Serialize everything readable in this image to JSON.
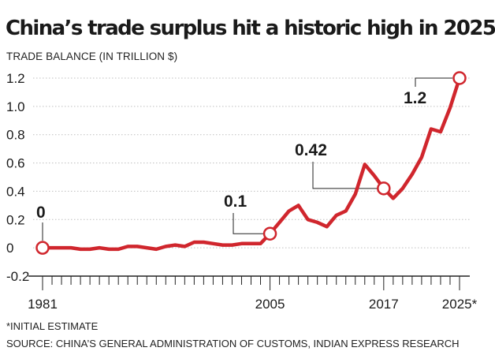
{
  "header": {
    "title": "China’s trade surplus hit a historic high in 2025",
    "subtitle": "TRADE BALANCE (IN TRILLION $)"
  },
  "footer": {
    "note": "*INITIAL ESTIMATE",
    "source": "SOURCE: CHINA’S GENERAL ADMINISTRATION OF CUSTOMS, INDIAN EXPRESS RESEARCH"
  },
  "colors": {
    "line": "#d0262d",
    "marker_fill": "#ffffff",
    "text": "#1a1a1a",
    "grid": "#bfbfbf",
    "axis": "#222222"
  },
  "chart_data": {
    "type": "line",
    "title": "China’s trade surplus hit a historic high in 2025",
    "ylabel": "TRADE BALANCE (IN TRILLION $)",
    "xlabel": "",
    "ylim": [
      -0.2,
      1.2
    ],
    "y_ticks": [
      {
        "value": 1.2,
        "label": "1.2"
      },
      {
        "value": 1.0,
        "label": "1.0"
      },
      {
        "value": 0.8,
        "label": "0.8"
      },
      {
        "value": 0.6,
        "label": "0.6"
      },
      {
        "value": 0.4,
        "label": "0.4"
      },
      {
        "value": 0.2,
        "label": "0.2"
      },
      {
        "value": 0,
        "label": "0"
      },
      {
        "value": -0.2,
        "label": "-0.2"
      }
    ],
    "x_range": [
      1981,
      2025
    ],
    "x_tick_labels": [
      {
        "year": 1981,
        "label": "1981"
      },
      {
        "year": 2005,
        "label": "2005"
      },
      {
        "year": 2017,
        "label": "2017"
      },
      {
        "year": 2025,
        "label": "2025*"
      }
    ],
    "grid": "horizontal",
    "series": [
      {
        "name": "Trade balance",
        "x": [
          1981,
          1982,
          1983,
          1984,
          1985,
          1986,
          1987,
          1988,
          1989,
          1990,
          1991,
          1992,
          1993,
          1994,
          1995,
          1996,
          1997,
          1998,
          1999,
          2000,
          2001,
          2002,
          2003,
          2004,
          2005,
          2006,
          2007,
          2008,
          2009,
          2010,
          2011,
          2012,
          2013,
          2014,
          2015,
          2016,
          2017,
          2018,
          2019,
          2020,
          2021,
          2022,
          2023,
          2024,
          2025
        ],
        "values": [
          0,
          0,
          0,
          0,
          -0.01,
          -0.01,
          0,
          -0.01,
          -0.01,
          0.01,
          0.01,
          0,
          -0.01,
          0.01,
          0.02,
          0.01,
          0.04,
          0.04,
          0.03,
          0.02,
          0.02,
          0.03,
          0.03,
          0.03,
          0.1,
          0.18,
          0.26,
          0.3,
          0.2,
          0.18,
          0.15,
          0.23,
          0.26,
          0.38,
          0.59,
          0.51,
          0.42,
          0.35,
          0.42,
          0.52,
          0.64,
          0.84,
          0.82,
          0.99,
          1.2
        ]
      }
    ],
    "highlighted_points": [
      {
        "year": 1981,
        "label": "0"
      },
      {
        "year": 2005,
        "label": "0.1"
      },
      {
        "year": 2017,
        "label": "0.42"
      },
      {
        "year": 2025,
        "label": "1.2"
      }
    ],
    "footnote": "*INITIAL ESTIMATE"
  }
}
